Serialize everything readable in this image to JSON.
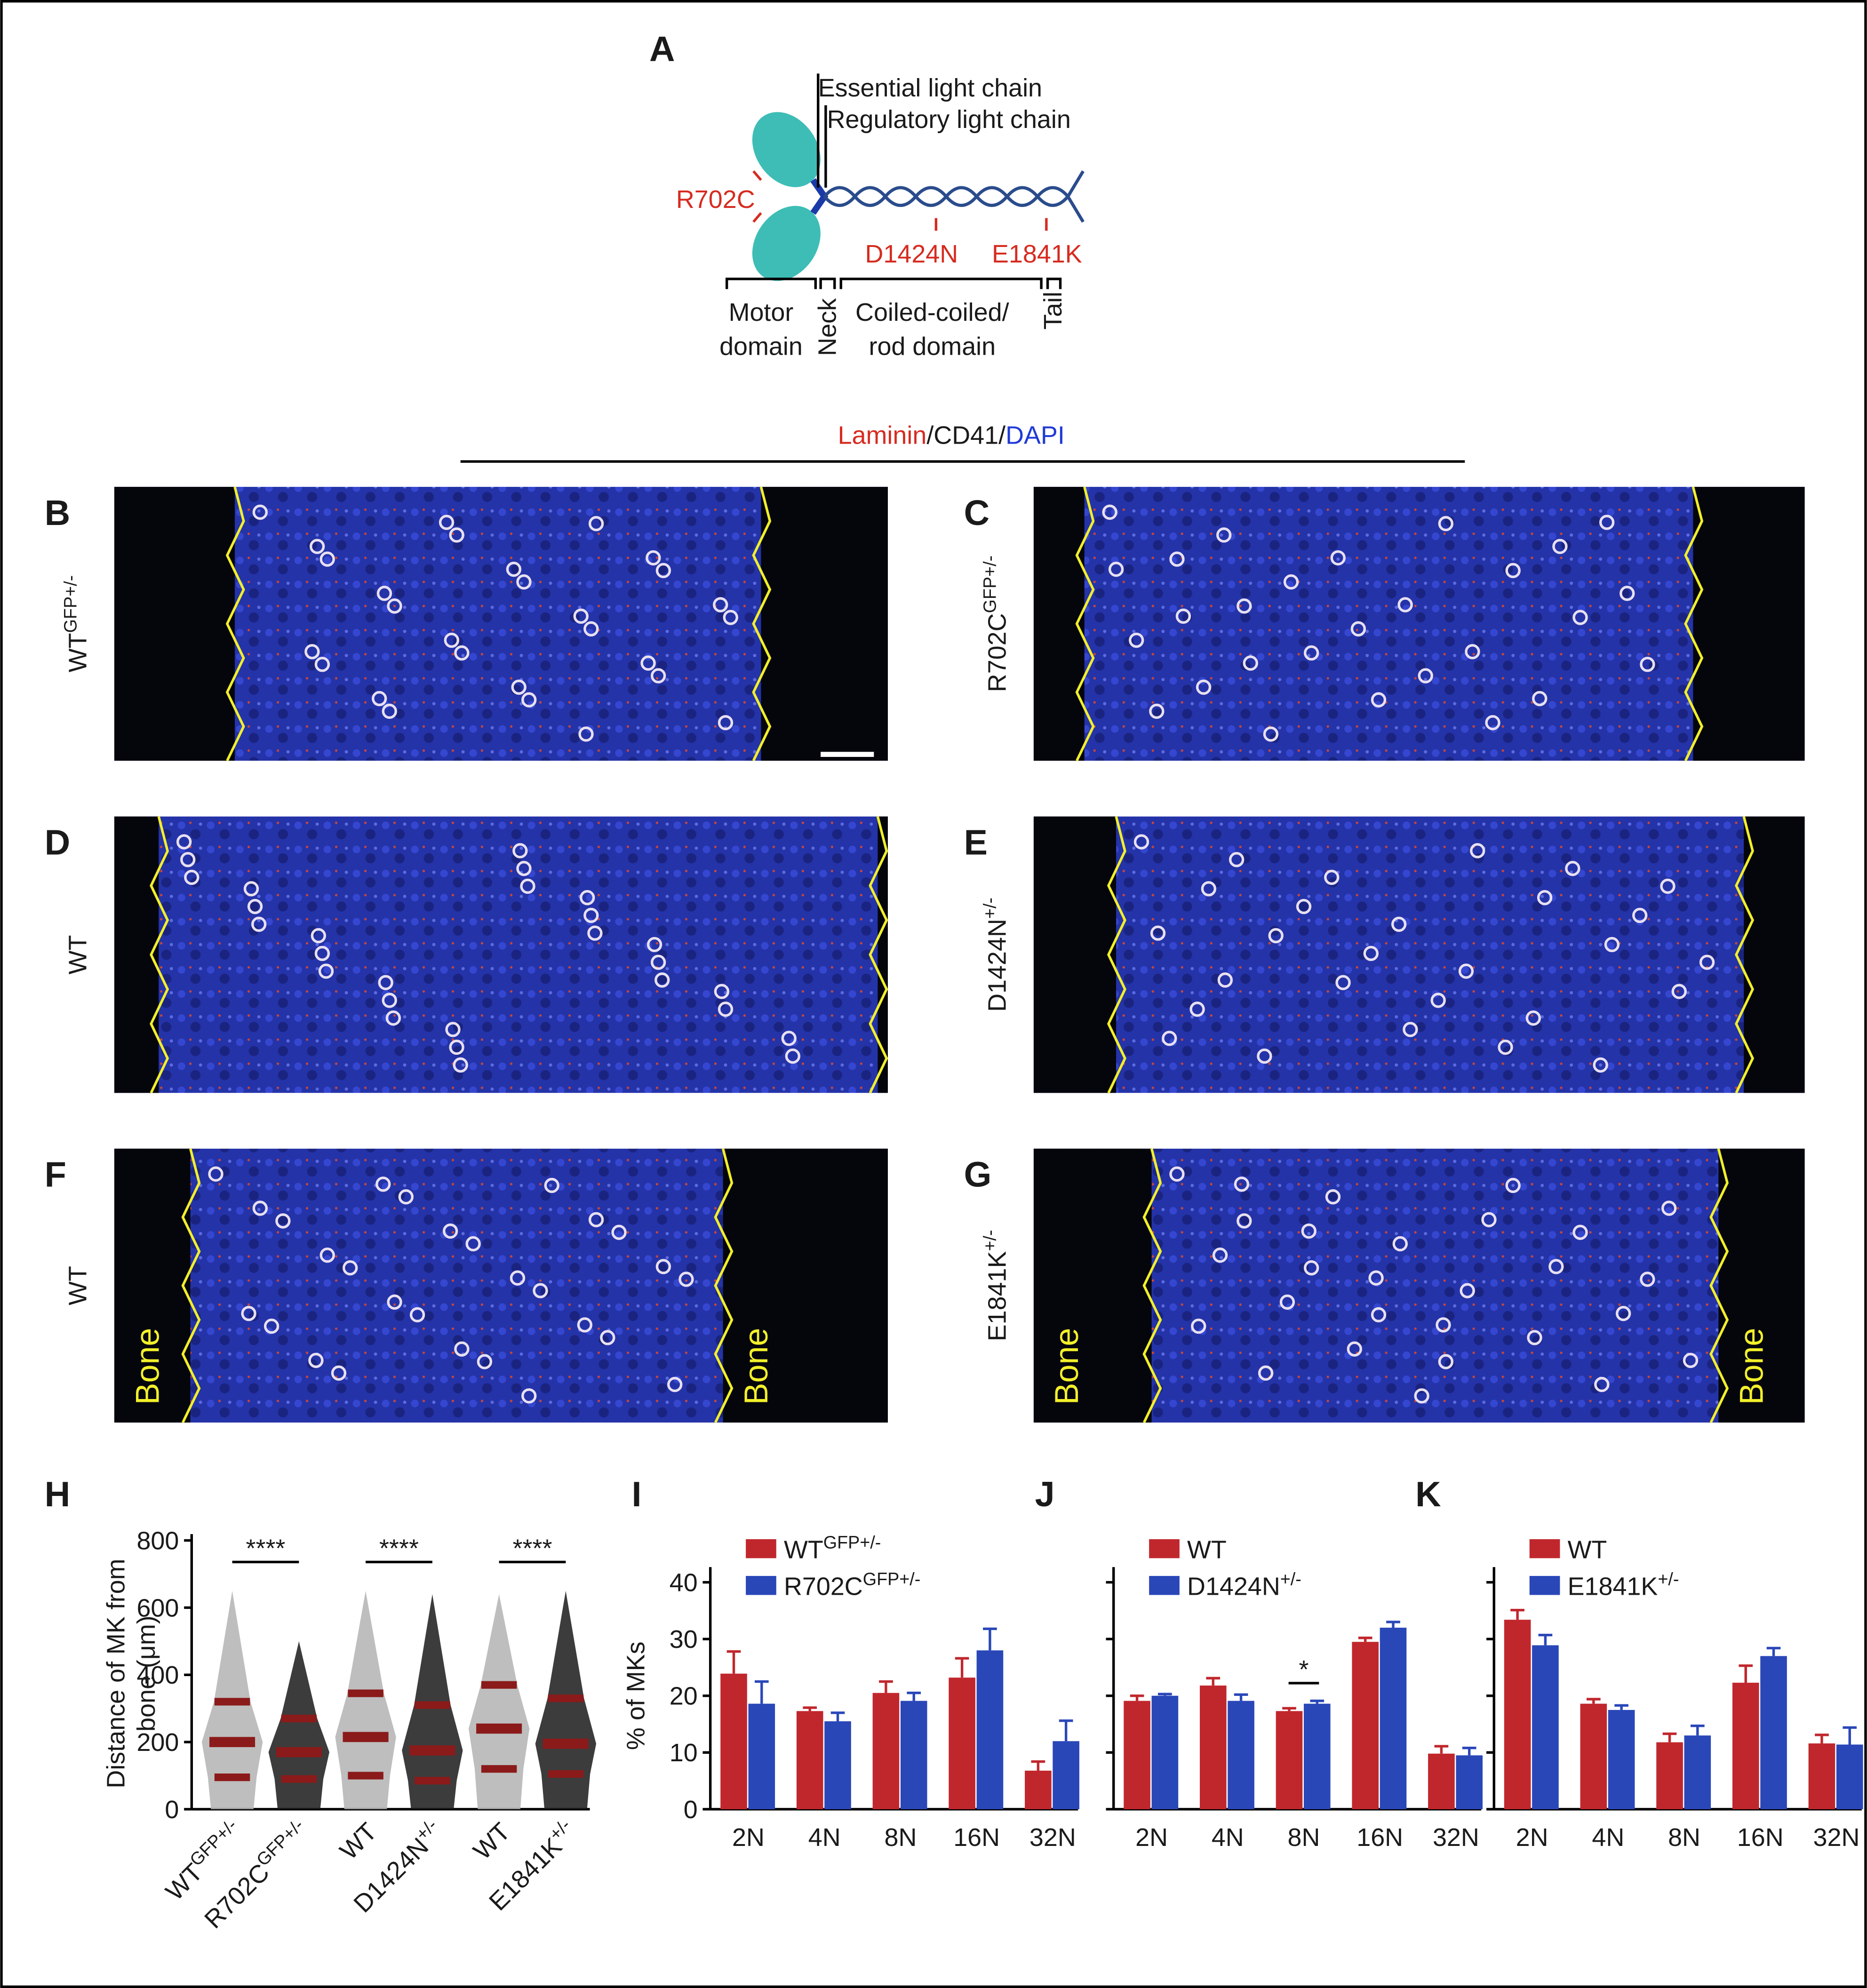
{
  "figure": {
    "panel_a": {
      "label": "A",
      "essential": "Essential light chain",
      "regulatory": "Regulatory light chain",
      "mutations": [
        "R702C",
        "D1424N",
        "E1841K"
      ],
      "motor": [
        "Motor",
        "domain"
      ],
      "neck": "Neck",
      "rod": [
        "Coiled-coiled/",
        "rod domain"
      ],
      "tail": "Tail"
    },
    "stain": [
      "Laminin",
      "/CD41/",
      "DAPI"
    ],
    "images": [
      {
        "label": "B",
        "genotype": {
          "base": "WT",
          "sup": "GFP+/-"
        }
      },
      {
        "label": "C",
        "genotype": {
          "base": "R702C",
          "sup": "GFP+/-"
        }
      },
      {
        "label": "D",
        "genotype": {
          "base": "WT"
        }
      },
      {
        "label": "E",
        "genotype": {
          "base": "D1424N",
          "sup": "+/-"
        }
      },
      {
        "label": "F",
        "genotype": {
          "base": "WT"
        },
        "bone": [
          "Bone",
          "Bone"
        ]
      },
      {
        "label": "G",
        "genotype": {
          "base": "E1841K",
          "sup": "+/-"
        },
        "bone": [
          "Bone",
          "Bone"
        ]
      }
    ]
  },
  "chart_data": [
    {
      "type": "dot",
      "panel": "H",
      "ylabel": [
        "Distance of MK from",
        "bone (μm)"
      ],
      "categories": [
        {
          "base": "WT",
          "sup": "GFP+/-"
        },
        {
          "base": "R702C",
          "sup": "GFP+/-"
        },
        {
          "base": "WT"
        },
        {
          "base": "D1424N",
          "sup": "+/-"
        },
        {
          "base": "WT"
        },
        {
          "base": "E1841K",
          "sup": "+/-"
        }
      ],
      "colors": [
        "#b3b3b3",
        "#1a1a1a",
        "#b3b3b3",
        "#1a1a1a",
        "#b3b3b3",
        "#1a1a1a"
      ],
      "median": [
        200,
        170,
        215,
        175,
        240,
        195
      ],
      "q1": [
        95,
        90,
        100,
        85,
        120,
        105
      ],
      "q3": [
        320,
        270,
        345,
        310,
        370,
        330
      ],
      "max": [
        650,
        500,
        650,
        640,
        640,
        650
      ],
      "ylim": [
        0,
        800
      ],
      "yticks": [
        0,
        200,
        400,
        600,
        800
      ],
      "significance": [
        "****",
        "****",
        "****"
      ]
    },
    {
      "type": "bar",
      "panel": "I",
      "ylabel": "% of MKs",
      "categories": [
        "2N",
        "4N",
        "8N",
        "16N",
        "32N"
      ],
      "series": [
        {
          "name": {
            "base": "WT",
            "sup": "GFP+/-"
          },
          "color": "#c0272d",
          "values": [
            23.9,
            17.3,
            20.5,
            23.2,
            6.8
          ],
          "errors": [
            3.9,
            0.6,
            2,
            3.4,
            1.6
          ]
        },
        {
          "name": {
            "base": "R702C",
            "sup": "GFP+/-"
          },
          "color": "#2a47b8",
          "values": [
            18.6,
            15.5,
            19.1,
            28,
            12
          ],
          "errors": [
            3.9,
            1.5,
            1.4,
            3.8,
            3.6
          ]
        }
      ],
      "ylim": [
        0,
        40
      ],
      "yticks": [
        0,
        10,
        20,
        30,
        40
      ],
      "tick_labels": true
    },
    {
      "type": "bar",
      "panel": "J",
      "categories": [
        "2N",
        "4N",
        "8N",
        "16N",
        "32N"
      ],
      "series": [
        {
          "name": {
            "base": "WT"
          },
          "color": "#c0272d",
          "values": [
            19.1,
            21.8,
            17.3,
            29.5,
            9.8
          ],
          "errors": [
            0.9,
            1.3,
            0.5,
            0.7,
            1.3
          ]
        },
        {
          "name": {
            "base": "D1424N",
            "sup": "+/-"
          },
          "color": "#2a47b8",
          "values": [
            20,
            19.1,
            18.6,
            32,
            9.5
          ],
          "errors": [
            0.3,
            1.1,
            0.5,
            1,
            1.3
          ]
        }
      ],
      "ylim": [
        0,
        40
      ],
      "yticks": [
        0,
        10,
        20,
        30,
        40
      ],
      "tick_labels": false,
      "significance": [
        null,
        null,
        "*",
        null,
        null
      ]
    },
    {
      "type": "bar",
      "panel": "K",
      "categories": [
        "2N",
        "4N",
        "8N",
        "16N",
        "32N"
      ],
      "series": [
        {
          "name": {
            "base": "WT"
          },
          "color": "#c0272d",
          "values": [
            33.4,
            18.6,
            11.8,
            22.3,
            11.6
          ],
          "errors": [
            1.7,
            0.8,
            1.5,
            3,
            1.5
          ]
        },
        {
          "name": {
            "base": "E1841K",
            "sup": "+/-"
          },
          "color": "#2a47b8",
          "values": [
            28.9,
            17.5,
            13,
            27,
            11.4
          ],
          "errors": [
            1.8,
            0.8,
            1.7,
            1.4,
            3
          ]
        }
      ],
      "ylim": [
        0,
        40
      ],
      "yticks": [
        0,
        10,
        20,
        30,
        40
      ],
      "tick_labels": false
    }
  ]
}
